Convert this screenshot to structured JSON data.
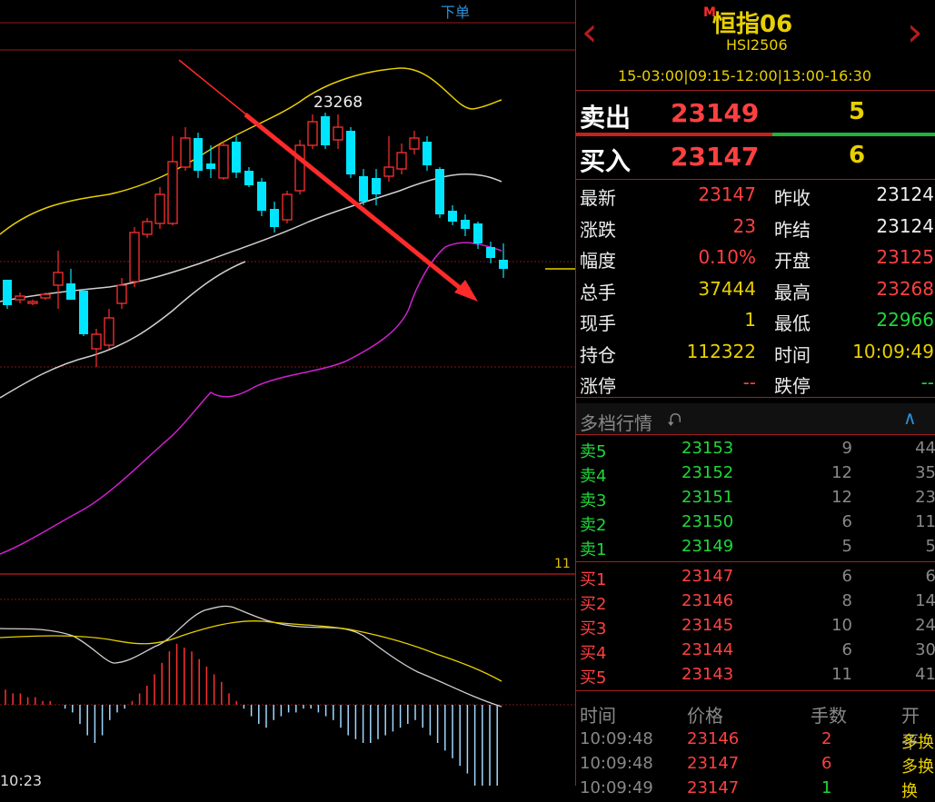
{
  "chart": {
    "order_button": "下单",
    "high_label": "23268",
    "volume_label": "11",
    "bottom_time": "10:23"
  },
  "header": {
    "m_badge": "M",
    "name": "恒指06",
    "code": "HSI2506",
    "hours": "15-03:00|09:15-12:00|13:00-16:30",
    "prev_arrow": "‹",
    "next_arrow": "›"
  },
  "best": {
    "ask_label": "卖出",
    "ask_price": "23149",
    "ask_qty": "5",
    "bid_label": "买入",
    "bid_price": "23147",
    "bid_qty": "6"
  },
  "quote": {
    "rows": [
      {
        "l1": "最新",
        "v1": "23147",
        "l2": "昨收",
        "v2": "23124"
      },
      {
        "l1": "涨跌",
        "v1": "23",
        "l2": "昨结",
        "v2": "23124"
      },
      {
        "l1": "幅度",
        "v1": "0.10%",
        "l2": "开盘",
        "v2": "23125"
      },
      {
        "l1": "总手",
        "v1": "37444",
        "l2": "最高",
        "v2": "23268"
      },
      {
        "l1": "现手",
        "v1": "1",
        "l2": "最低",
        "v2": "22966"
      },
      {
        "l1": "持仓",
        "v1": "112322",
        "l2": "时间",
        "v2": "10:09:49"
      },
      {
        "l1": "涨停",
        "v1": "--",
        "l2": "跌停",
        "v2": "--"
      }
    ]
  },
  "depth": {
    "title": "多档行情",
    "expand_icon": "double-chevron-down-icon",
    "collapse_icon": "chevron-up-icon",
    "asks": [
      {
        "label": "卖5",
        "price": "23153",
        "qty": "9",
        "total": "44"
      },
      {
        "label": "卖4",
        "price": "23152",
        "qty": "12",
        "total": "35"
      },
      {
        "label": "卖3",
        "price": "23151",
        "qty": "12",
        "total": "23"
      },
      {
        "label": "卖2",
        "price": "23150",
        "qty": "6",
        "total": "11"
      },
      {
        "label": "卖1",
        "price": "23149",
        "qty": "5",
        "total": "5"
      }
    ],
    "bids": [
      {
        "label": "买1",
        "price": "23147",
        "qty": "6",
        "total": "6"
      },
      {
        "label": "买2",
        "price": "23146",
        "qty": "8",
        "total": "14"
      },
      {
        "label": "买3",
        "price": "23145",
        "qty": "10",
        "total": "24"
      },
      {
        "label": "买4",
        "price": "23144",
        "qty": "6",
        "total": "30"
      },
      {
        "label": "买5",
        "price": "23143",
        "qty": "11",
        "total": "41"
      }
    ]
  },
  "ticks": {
    "headers": {
      "time": "时间",
      "price": "价格",
      "qty": "手数",
      "type": "开平"
    },
    "rows": [
      {
        "time": "10:09:48",
        "price": "23146",
        "qty": "2",
        "type": "多换"
      },
      {
        "time": "10:09:48",
        "price": "23147",
        "qty": "6",
        "type": "多换"
      },
      {
        "time": "10:09:49",
        "price": "23147",
        "qty": "1",
        "type": "换"
      }
    ]
  },
  "colors": {
    "bull": "#ff3030",
    "bear": "#00e5ff",
    "upper_band": "#e8d000",
    "mid_band": "#d0d0d0",
    "lower_band": "#d020d0",
    "arrow": "#ff2a2a",
    "grid": "#a01818"
  }
}
